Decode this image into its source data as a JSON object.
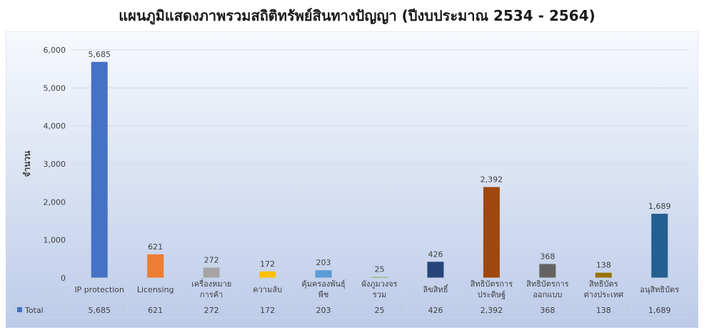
{
  "title": "แผนภูมิแสดงภาพรวมสถิติทรัพย์สินทางปัญญา (ปีงบประมาณ 2534 - 2564)",
  "chart_data": {
    "type": "bar",
    "title": "แผนภูมิแสดงภาพรวมสถิติทรัพย์สินทางปัญญา (ปีงบประมาณ 2534 - 2564)",
    "xlabel": "",
    "ylabel": "จำนวน",
    "ylim": [
      0,
      6000
    ],
    "yticks": [
      0,
      1000,
      2000,
      3000,
      4000,
      5000,
      6000
    ],
    "ytick_labels": [
      "0",
      "1,000",
      "2,000",
      "3,000",
      "4,000",
      "5,000",
      "6,000"
    ],
    "grid": true,
    "legend": "data-table-left",
    "categories": [
      [
        "IP protection"
      ],
      [
        "Licensing"
      ],
      [
        "เครื่องหมาย",
        "การค้า"
      ],
      [
        "ความลับ"
      ],
      [
        "คุ้มครองพันธุ์",
        "พืช"
      ],
      [
        "ผังภูมวงจร",
        "รวม"
      ],
      [
        "ลิขสิทธิ์"
      ],
      [
        "สิทธิบัตรการ",
        "ประดิษฐ์"
      ],
      [
        "สิทธิบัตรการ",
        "ออกแบบ"
      ],
      [
        "สิทธิบัตร",
        "ต่างประเทศ"
      ],
      [
        "อนุสิทธิบัตร"
      ]
    ],
    "series": [
      {
        "name": "Total",
        "values": [
          5685,
          621,
          272,
          172,
          203,
          25,
          426,
          2392,
          368,
          138,
          1689
        ],
        "value_labels": [
          "5,685",
          "621",
          "272",
          "172",
          "203",
          "25",
          "426",
          "2,392",
          "368",
          "138",
          "1,689"
        ]
      }
    ],
    "bar_colors": [
      "#4472c4",
      "#ed7d31",
      "#a5a5a5",
      "#ffc000",
      "#5b9bd5",
      "#70ad47",
      "#264478",
      "#9e480e",
      "#636363",
      "#997300",
      "#255e91"
    ],
    "legend_color": "#4472c4"
  }
}
